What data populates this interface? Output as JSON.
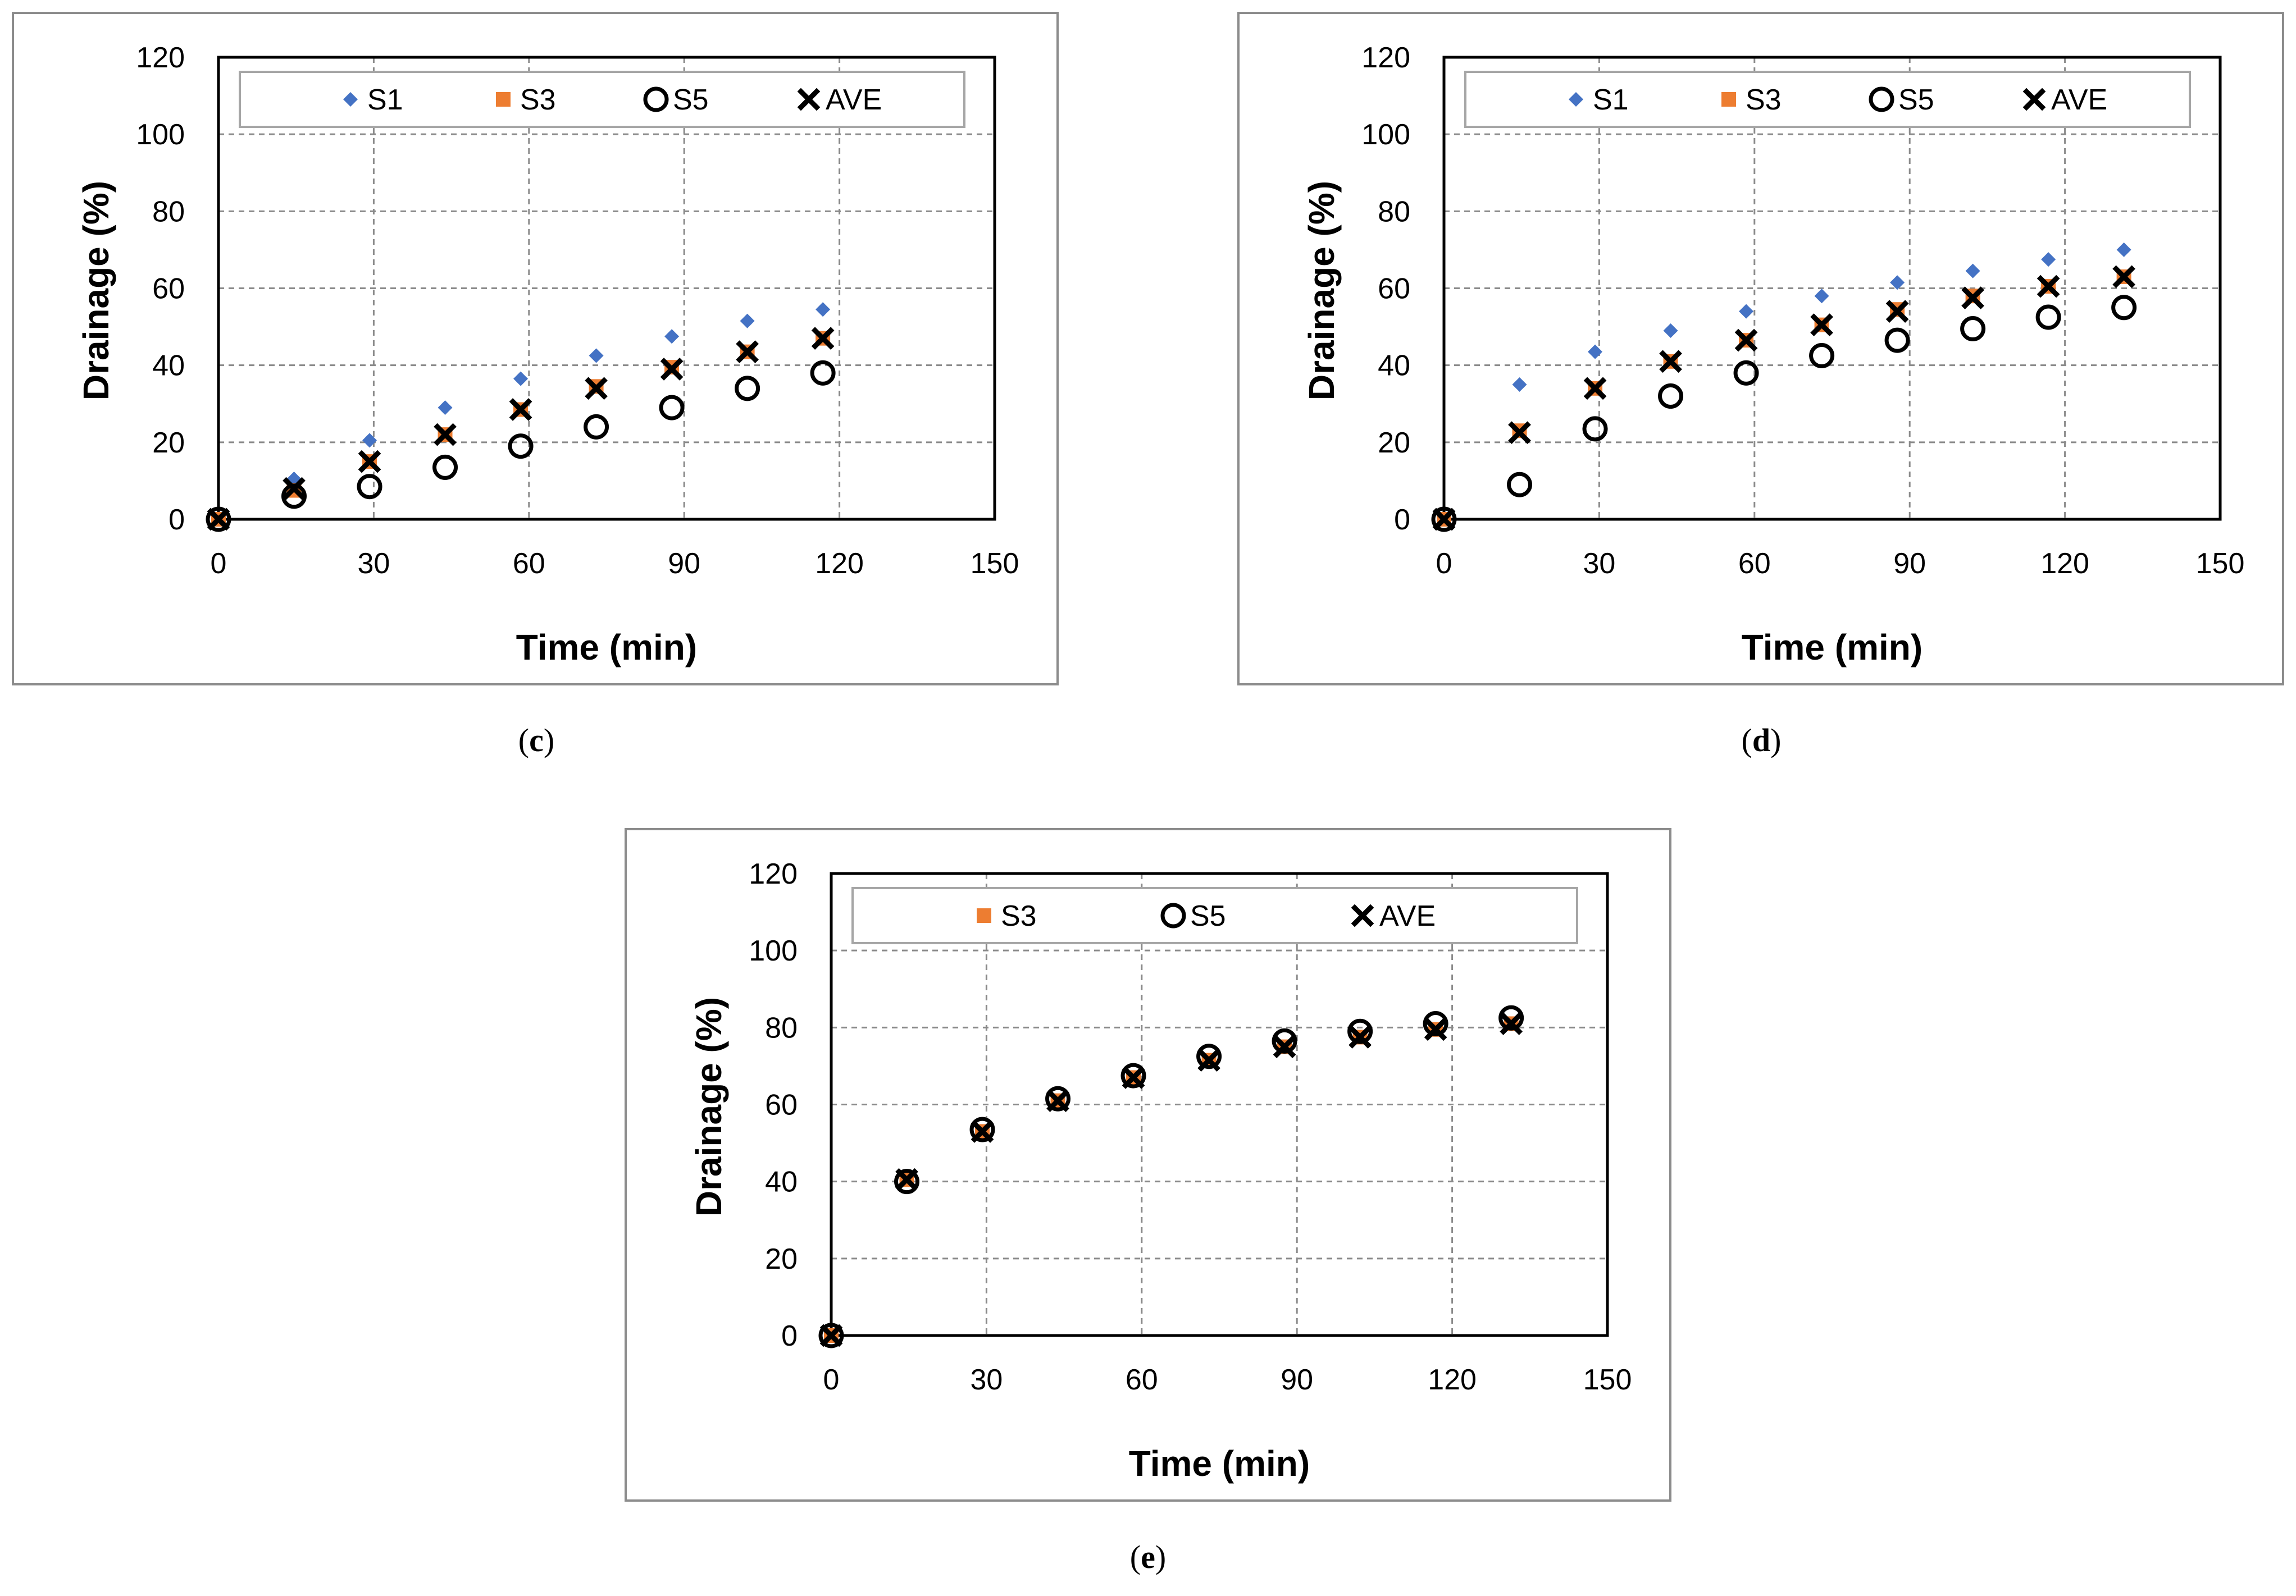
{
  "chart_data": [
    {
      "type": "scatter",
      "panel_label": "c",
      "xlabel": "Time (min)",
      "ylabel": "Drainage (%)",
      "xlim": [
        0,
        150
      ],
      "ylim": [
        0,
        120
      ],
      "xticks": [
        "0",
        "30",
        "60",
        "90",
        "120",
        "150"
      ],
      "yticks": [
        "0",
        "20",
        "40",
        "60",
        "80",
        "100",
        "120"
      ],
      "grid": true,
      "legend_position": "top",
      "series": [
        {
          "name": "S1",
          "marker": "diamond",
          "color": "#4472c4",
          "x": [
            0,
            14.6,
            29.2,
            43.8,
            58.4,
            73,
            87.6,
            102.2,
            116.8
          ],
          "y": [
            0,
            10.5,
            20.5,
            29,
            36.5,
            42.5,
            47.5,
            51.5,
            54.5
          ]
        },
        {
          "name": "S3",
          "marker": "square",
          "color": "#ed7d31",
          "x": [
            0,
            14.6,
            29.2,
            43.8,
            58.4,
            73,
            87.6,
            102.2,
            116.8
          ],
          "y": [
            0,
            7.5,
            15,
            22,
            28.5,
            34.5,
            39.5,
            43.5,
            47
          ]
        },
        {
          "name": "S5",
          "marker": "circle",
          "color": "#000000",
          "x": [
            0,
            14.6,
            29.2,
            43.8,
            58.4,
            73,
            87.6,
            102.2,
            116.8
          ],
          "y": [
            0,
            6,
            8.5,
            13.5,
            19,
            24,
            29,
            34,
            38
          ]
        },
        {
          "name": "AVE",
          "marker": "x",
          "color": "#000000",
          "x": [
            0,
            14.6,
            29.2,
            43.8,
            58.4,
            73,
            87.6,
            102.2,
            116.8
          ],
          "y": [
            0,
            8,
            15,
            22,
            28.5,
            34,
            39,
            43.5,
            47
          ]
        }
      ]
    },
    {
      "type": "scatter",
      "panel_label": "d",
      "xlabel": "Time (min)",
      "ylabel": "Drainage (%)",
      "xlim": [
        0,
        150
      ],
      "ylim": [
        0,
        120
      ],
      "xticks": [
        "0",
        "30",
        "60",
        "90",
        "120",
        "150"
      ],
      "yticks": [
        "0",
        "20",
        "40",
        "60",
        "80",
        "100",
        "120"
      ],
      "grid": true,
      "legend_position": "top",
      "series": [
        {
          "name": "S1",
          "marker": "diamond",
          "color": "#4472c4",
          "x": [
            0,
            14.6,
            29.2,
            43.8,
            58.4,
            73,
            87.6,
            102.2,
            116.8,
            131.4
          ],
          "y": [
            0,
            35,
            43.5,
            49,
            54,
            58,
            61.5,
            64.5,
            67.5,
            70
          ]
        },
        {
          "name": "S3",
          "marker": "square",
          "color": "#ed7d31",
          "x": [
            0,
            14.6,
            29.2,
            43.8,
            58.4,
            73,
            87.6,
            102.2,
            116.8,
            131.4
          ],
          "y": [
            0,
            23,
            34,
            41,
            46.5,
            50.5,
            54.5,
            58,
            60.5,
            63
          ]
        },
        {
          "name": "S5",
          "marker": "circle",
          "color": "#000000",
          "x": [
            0,
            14.6,
            29.2,
            43.8,
            58.4,
            73,
            87.6,
            102.2,
            116.8,
            131.4
          ],
          "y": [
            0,
            9,
            23.5,
            32,
            38,
            42.5,
            46.5,
            49.5,
            52.5,
            55
          ]
        },
        {
          "name": "AVE",
          "marker": "x",
          "color": "#000000",
          "x": [
            0,
            14.6,
            29.2,
            43.8,
            58.4,
            73,
            87.6,
            102.2,
            116.8,
            131.4
          ],
          "y": [
            0,
            22.5,
            34,
            41,
            46.5,
            50.5,
            54,
            57.5,
            60.5,
            63
          ]
        }
      ]
    },
    {
      "type": "scatter",
      "panel_label": "e",
      "xlabel": "Time (min)",
      "ylabel": "Drainage (%)",
      "xlim": [
        0,
        150
      ],
      "ylim": [
        0,
        120
      ],
      "xticks": [
        "0",
        "30",
        "60",
        "90",
        "120",
        "150"
      ],
      "yticks": [
        "0",
        "20",
        "40",
        "60",
        "80",
        "100",
        "120"
      ],
      "grid": true,
      "legend_position": "top",
      "series": [
        {
          "name": "S3",
          "marker": "square",
          "color": "#ed7d31",
          "x": [
            0,
            14.6,
            29.2,
            43.8,
            58.4,
            73,
            87.6,
            102.2,
            116.8,
            131.4
          ],
          "y": [
            0,
            40.5,
            53,
            61,
            67,
            71.5,
            75,
            77.5,
            79.5,
            81
          ]
        },
        {
          "name": "S5",
          "marker": "circle",
          "color": "#000000",
          "x": [
            0,
            14.6,
            29.2,
            43.8,
            58.4,
            73,
            87.6,
            102.2,
            116.8,
            131.4
          ],
          "y": [
            0,
            40,
            53.5,
            61.5,
            67.5,
            72.5,
            76.5,
            79,
            81,
            82.5
          ]
        },
        {
          "name": "AVE",
          "marker": "x",
          "color": "#000000",
          "x": [
            0,
            14.6,
            29.2,
            43.8,
            58.4,
            73,
            87.6,
            102.2,
            116.8,
            131.4
          ],
          "y": [
            0,
            40.5,
            53,
            61,
            67,
            71.5,
            75,
            77.5,
            79.5,
            81
          ]
        }
      ]
    }
  ]
}
